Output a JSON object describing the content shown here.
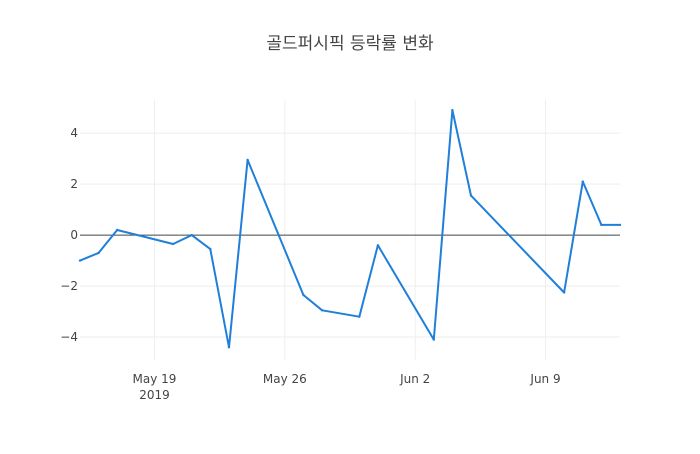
{
  "chart_data": {
    "type": "line",
    "title": "골드퍼시픽 등락률 변화",
    "xlabel": "",
    "ylabel": "",
    "x_ticks": [
      {
        "date": "2019-05-19",
        "label": "May 19",
        "sublabel": "2019"
      },
      {
        "date": "2019-05-26",
        "label": "May 26",
        "sublabel": ""
      },
      {
        "date": "2019-06-02",
        "label": "Jun 2",
        "sublabel": ""
      },
      {
        "date": "2019-06-09",
        "label": "Jun 9",
        "sublabel": ""
      }
    ],
    "y_ticks": [
      {
        "value": 4,
        "label": "4"
      },
      {
        "value": 2,
        "label": "2"
      },
      {
        "value": 0,
        "label": "0"
      },
      {
        "value": -2,
        "label": "−2"
      },
      {
        "value": -4,
        "label": "−4"
      }
    ],
    "xlim": [
      "2019-05-15",
      "2019-06-13"
    ],
    "ylim": [
      -4.9,
      5.3
    ],
    "grid": true,
    "zero_line": true,
    "series": [
      {
        "color": "#1f7fd9",
        "points": [
          {
            "x": "2019-05-15",
            "y": -1.0
          },
          {
            "x": "2019-05-16",
            "y": -0.7
          },
          {
            "x": "2019-05-17",
            "y": 0.2
          },
          {
            "x": "2019-05-20",
            "y": -0.35
          },
          {
            "x": "2019-05-21",
            "y": 0.0
          },
          {
            "x": "2019-05-22",
            "y": -0.55
          },
          {
            "x": "2019-05-23",
            "y": -4.4
          },
          {
            "x": "2019-05-24",
            "y": 2.95
          },
          {
            "x": "2019-05-27",
            "y": -2.35
          },
          {
            "x": "2019-05-28",
            "y": -2.95
          },
          {
            "x": "2019-05-30",
            "y": -3.2
          },
          {
            "x": "2019-05-31",
            "y": -0.4
          },
          {
            "x": "2019-06-03",
            "y": -4.1
          },
          {
            "x": "2019-06-04",
            "y": 4.9
          },
          {
            "x": "2019-06-05",
            "y": 1.55
          },
          {
            "x": "2019-06-10",
            "y": -2.25
          },
          {
            "x": "2019-06-11",
            "y": 2.1
          },
          {
            "x": "2019-06-12",
            "y": 0.4
          },
          {
            "x": "2019-06-13",
            "y": 0.4
          }
        ]
      }
    ]
  }
}
